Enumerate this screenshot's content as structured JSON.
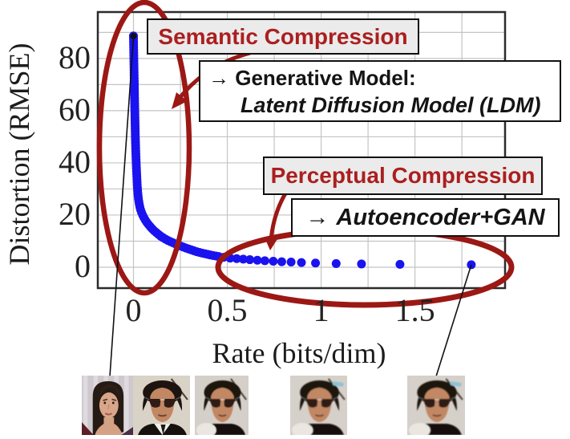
{
  "chart_data": {
    "type": "scatter",
    "title": "",
    "xlabel": "Rate (bits/dim)",
    "ylabel": "Distortion (RMSE)",
    "xlim": [
      -0.19,
      1.98
    ],
    "ylim": [
      -8,
      97.8
    ],
    "xticks": [
      0,
      0.5,
      1,
      1.5
    ],
    "xtick_labels": [
      "0",
      "0.5",
      "1",
      "1.5"
    ],
    "yticks": [
      0,
      20,
      40,
      60,
      80
    ],
    "ytick_labels": [
      "0",
      "20",
      "40",
      "60",
      "80"
    ],
    "x_minor_step": 0.25,
    "y_minor_step": 10,
    "grid": true,
    "legend": "none",
    "series_name": "rate-distortion tradeoff",
    "curve_anchors": [
      [
        0.0,
        88.6
      ],
      [
        0.001,
        84
      ],
      [
        0.002,
        80
      ],
      [
        0.003,
        76
      ],
      [
        0.004,
        72
      ],
      [
        0.005,
        68
      ],
      [
        0.006,
        64
      ],
      [
        0.007,
        60.5
      ],
      [
        0.008,
        57
      ],
      [
        0.009,
        53.5
      ],
      [
        0.01,
        50
      ],
      [
        0.012,
        45
      ],
      [
        0.014,
        41
      ],
      [
        0.016,
        37.5
      ],
      [
        0.018,
        34.5
      ],
      [
        0.02,
        31.5
      ],
      [
        0.023,
        28.5
      ],
      [
        0.026,
        26.5
      ],
      [
        0.03,
        24.5
      ],
      [
        0.035,
        22.8
      ],
      [
        0.04,
        21.5
      ],
      [
        0.05,
        19.8
      ],
      [
        0.06,
        18.4
      ],
      [
        0.073,
        17.0
      ],
      [
        0.09,
        15.5
      ],
      [
        0.105,
        14.3
      ],
      [
        0.125,
        13.1
      ],
      [
        0.145,
        11.9
      ],
      [
        0.165,
        11.0
      ],
      [
        0.185,
        10.2
      ],
      [
        0.21,
        9.4
      ],
      [
        0.235,
        8.6
      ],
      [
        0.26,
        7.9
      ],
      [
        0.285,
        7.2
      ],
      [
        0.31,
        6.6
      ],
      [
        0.335,
        6.0
      ],
      [
        0.36,
        5.5
      ],
      [
        0.385,
        5.1
      ],
      [
        0.41,
        4.7
      ],
      [
        0.435,
        4.35
      ],
      [
        0.46,
        4.0
      ]
    ],
    "discrete_points": [
      [
        0.48,
        3.8
      ],
      [
        0.515,
        3.5
      ],
      [
        0.55,
        3.3
      ],
      [
        0.585,
        3.1
      ],
      [
        0.62,
        2.9
      ],
      [
        0.66,
        2.7
      ],
      [
        0.7,
        2.5
      ],
      [
        0.745,
        2.3
      ],
      [
        0.79,
        2.1
      ],
      [
        0.84,
        2.0
      ],
      [
        0.895,
        1.8
      ],
      [
        0.97,
        1.6
      ],
      [
        1.08,
        1.4
      ],
      [
        1.215,
        1.25
      ],
      [
        1.42,
        1.1
      ],
      [
        1.8,
        0.95
      ]
    ],
    "peak_marker": {
      "rate": 0.0,
      "distortion": 88.6
    }
  },
  "annotations": {
    "semantic_label": "Semantic Compression",
    "generative_line1": "→ Generative Model:",
    "generative_line2": "Latent Diffusion Model (LDM)",
    "perceptual_label": "Perceptual Compression",
    "autoencoder_arrow": "→",
    "autoencoder_label": "Autoencoder+GAN"
  },
  "colors": {
    "dot_blue": "#1a13ef",
    "annotation_red": "#ab1f1f",
    "shape_red": "#9c1815",
    "grid_gray": "#c4c4c4",
    "axis_dark": "#2b2b2b",
    "label_box_gray": "#ebebeb",
    "box_white": "#ffffff",
    "connector_black": "#111111"
  },
  "faces": [
    {
      "name": "face-photo-original-woman",
      "variant": "woman",
      "bg": "#cfc9ce",
      "blur": 0
    },
    {
      "name": "face-recon-high-rate",
      "variant": "man",
      "bg": "#d9d2c6",
      "collar": true,
      "blur": 0
    },
    {
      "name": "face-recon-mid-rate-1",
      "variant": "man",
      "bg": "#d5cfc9",
      "blob": true,
      "blur": 0.45
    },
    {
      "name": "face-recon-mid-rate-2",
      "variant": "man",
      "bg": "#d6d0ca",
      "blob": true,
      "smudge": true,
      "blur": 0.75
    },
    {
      "name": "face-recon-low-rate",
      "variant": "man",
      "bg": "#d6d0ca",
      "blob": true,
      "smudge": true,
      "blur": 0.75
    }
  ]
}
